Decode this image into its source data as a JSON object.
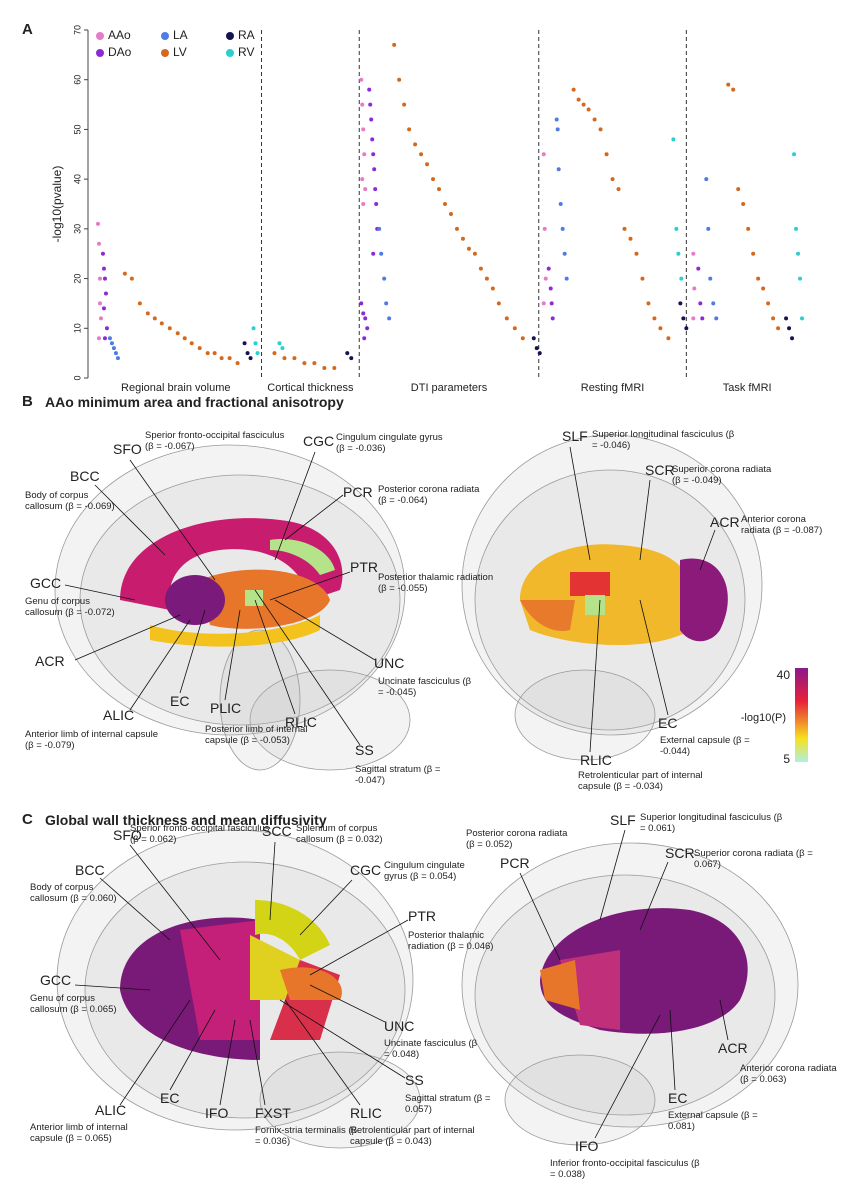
{
  "chart_data": {
    "type": "scatter",
    "panel_label": "A",
    "y_label": "-log10(pvalue)",
    "legend": "top-left",
    "xlim": [
      0,
      720
    ],
    "ylim": [
      0,
      70
    ],
    "yticks": [
      0,
      10,
      20,
      30,
      40,
      50,
      60,
      70
    ],
    "groups": [
      {
        "name": "Regional brain volume",
        "start": 0,
        "end": 172
      },
      {
        "name": "Cortical thickness",
        "start": 172,
        "end": 270
      },
      {
        "name": "DTI parameters",
        "start": 270,
        "end": 450
      },
      {
        "name": "Resting fMRI",
        "start": 450,
        "end": 598
      },
      {
        "name": "Task fMRI",
        "start": 598,
        "end": 720
      }
    ],
    "series": [
      {
        "name": "AAo",
        "color": "#e87ac8",
        "x": [
          8,
          9,
          10,
          10,
          11,
          9,
          272,
          273,
          274,
          275,
          273,
          276,
          274,
          455,
          456,
          457,
          455,
          605,
          606,
          605
        ],
        "values": [
          31,
          27,
          20,
          15,
          12,
          8,
          60,
          55,
          50,
          45,
          40,
          38,
          35,
          45,
          30,
          20,
          15,
          25,
          18,
          12
        ]
      },
      {
        "name": "DAo",
        "color": "#8b2bd6",
        "x": [
          13,
          14,
          15,
          16,
          14,
          17,
          15,
          272,
          274,
          276,
          278,
          275,
          280,
          281,
          282,
          283,
          284,
          285,
          286,
          287,
          288,
          284,
          460,
          462,
          463,
          464,
          610,
          612,
          614
        ],
        "values": [
          25,
          22,
          20,
          17,
          14,
          10,
          8,
          15,
          13,
          12,
          10,
          8,
          58,
          55,
          52,
          48,
          45,
          42,
          38,
          35,
          30,
          25,
          22,
          18,
          15,
          12,
          22,
          15,
          12
        ]
      },
      {
        "name": "LA",
        "color": "#4f7be6",
        "x": [
          20,
          22,
          24,
          26,
          28,
          290,
          292,
          295,
          297,
          300,
          468,
          469,
          470,
          472,
          474,
          476,
          478,
          618,
          620,
          622,
          625,
          628
        ],
        "values": [
          8,
          7,
          6,
          5,
          4,
          30,
          25,
          20,
          15,
          12,
          52,
          50,
          42,
          35,
          30,
          25,
          20,
          40,
          30,
          20,
          15,
          12
        ]
      },
      {
        "name": "LV",
        "color": "#d4691e",
        "x": [
          35,
          42,
          50,
          58,
          65,
          72,
          80,
          88,
          95,
          102,
          110,
          118,
          125,
          132,
          140,
          148,
          185,
          195,
          205,
          215,
          225,
          235,
          245,
          305,
          310,
          315,
          320,
          326,
          332,
          338,
          344,
          350,
          356,
          362,
          368,
          374,
          380,
          386,
          392,
          398,
          404,
          410,
          418,
          426,
          434,
          485,
          490,
          495,
          500,
          506,
          512,
          518,
          524,
          530,
          536,
          542,
          548,
          554,
          560,
          566,
          572,
          580,
          640,
          645,
          650,
          655,
          660,
          665,
          670,
          675,
          680,
          685,
          690
        ],
        "values": [
          21,
          20,
          15,
          13,
          12,
          11,
          10,
          9,
          8,
          7,
          6,
          5,
          5,
          4,
          4,
          3,
          5,
          4,
          4,
          3,
          3,
          2,
          2,
          67,
          60,
          55,
          50,
          47,
          45,
          43,
          40,
          38,
          35,
          33,
          30,
          28,
          26,
          25,
          22,
          20,
          18,
          15,
          12,
          10,
          8,
          58,
          56,
          55,
          54,
          52,
          50,
          45,
          40,
          38,
          30,
          28,
          25,
          20,
          15,
          12,
          10,
          8,
          59,
          58,
          38,
          35,
          30,
          25,
          20,
          18,
          15,
          12,
          10
        ]
      },
      {
        "name": "RA",
        "color": "#141454",
        "x": [
          155,
          158,
          161,
          258,
          262,
          445,
          448,
          451,
          592,
          595,
          598,
          698,
          701,
          704
        ],
        "values": [
          7,
          5,
          4,
          5,
          4,
          8,
          6,
          5,
          15,
          12,
          10,
          12,
          10,
          8
        ]
      },
      {
        "name": "RV",
        "color": "#2bcfcf",
        "x": [
          164,
          166,
          168,
          190,
          193,
          585,
          588,
          590,
          593,
          706,
          708,
          710,
          712,
          714
        ],
        "values": [
          10,
          7,
          5,
          7,
          6,
          48,
          30,
          25,
          20,
          45,
          30,
          25,
          20,
          12
        ]
      }
    ]
  },
  "panels": [
    {
      "label": "B",
      "title": "AAo minimum area and fractional anisotropy",
      "brains": [
        {
          "labels": [
            {
              "abbr": "SFO",
              "description": "Sperior fronto-occipital fasciculus (β = -0.067)"
            },
            {
              "abbr": "CGC",
              "description": "Cingulum cingulate gyrus (β = -0.036)"
            },
            {
              "abbr": "BCC",
              "description": "Body of corpus callosum (β = -0.069)"
            },
            {
              "abbr": "PCR",
              "description": "Posterior corona radiata (β = -0.064)"
            },
            {
              "abbr": "GCC",
              "description": "Genu of corpus callosum (β = -0.072)"
            },
            {
              "abbr": "PTR",
              "description": "Posterior thalamic radiation (β = -0.055)"
            },
            {
              "abbr": "UNC",
              "description": "Uncinate fasciculus (β = -0.045)"
            },
            {
              "abbr": "ACR"
            },
            {
              "abbr": "ALIC",
              "description": "Anterior limb of internal capsule (β = -0.079)"
            },
            {
              "abbr": "EC"
            },
            {
              "abbr": "PLIC",
              "description": "Posterior limb of internal capsule (β = -0.053)"
            },
            {
              "abbr": "RLIC"
            },
            {
              "abbr": "SS",
              "description": "Sagittal stratum (β = -0.047)"
            }
          ]
        },
        {
          "labels": [
            {
              "abbr": "SLF",
              "description": "Superior longitudinal fasciculus (β = -0.046)"
            },
            {
              "abbr": "SCR",
              "description": "Superior corona radiata (β = -0.049)"
            },
            {
              "abbr": "ACR",
              "description": "Anterior corona radiata (β = -0.087)"
            },
            {
              "abbr": "EC",
              "description": "External capsule (β = -0.044)"
            },
            {
              "abbr": "RLIC",
              "description": "Retrolenticular part of internal capsule (β = -0.034)"
            }
          ]
        }
      ]
    },
    {
      "label": "C",
      "title": "Global wall thickness and mean diffusivity",
      "brains": [
        {
          "labels": [
            {
              "abbr": "SFO",
              "description": "Sperior fronto-occipital fasciculus (β = 0.062)"
            },
            {
              "abbr": "SCC",
              "description": "Splenium of corpus callosum (β = 0.032)"
            },
            {
              "abbr": "BCC",
              "description": "Body of corpus callosum (β = 0.060)"
            },
            {
              "abbr": "CGC",
              "description": "Cingulum cingulate gyrus (β = 0.054)"
            },
            {
              "abbr": "PTR",
              "description": "Posterior thalamic radiation (β = 0.046)"
            },
            {
              "abbr": "GCC",
              "description": "Genu of corpus callosum (β = 0.065)"
            },
            {
              "abbr": "UNC",
              "description": "Uncinate fasciculus (β = 0.048)"
            },
            {
              "abbr": "SS",
              "description": "Sagittal stratum (β = 0.057)"
            },
            {
              "abbr": "ALIC",
              "description": "Anterior limb of internal capsule (β = 0.065)"
            },
            {
              "abbr": "EC"
            },
            {
              "abbr": "IFO"
            },
            {
              "abbr": "FXST",
              "description": "Fornix-stria terminalis (β = 0.036)"
            },
            {
              "abbr": "RLIC",
              "description": "Retrolenticular part of internal capsule (β = 0.043)"
            }
          ]
        },
        {
          "labels": [
            {
              "abbr": "PCR",
              "description": "Posterior corona radiata (β = 0.052)"
            },
            {
              "abbr": "SLF",
              "description": "Superior longitudinal fasciculus (β = 0.061)"
            },
            {
              "abbr": "SCR",
              "description": "Superior corona radiata (β = 0.067)"
            },
            {
              "abbr": "ACR",
              "description": "Anterior corona radiata (β = 0.063)"
            },
            {
              "abbr": "EC",
              "description": "External capsule (β = 0.081)"
            },
            {
              "abbr": "IFO",
              "description": "Inferior fronto-occipital fasciculus (β = 0.038)"
            }
          ]
        }
      ]
    }
  ],
  "colorbar": {
    "max_label": "40",
    "title": "-log10(P)",
    "min_label": "5"
  }
}
